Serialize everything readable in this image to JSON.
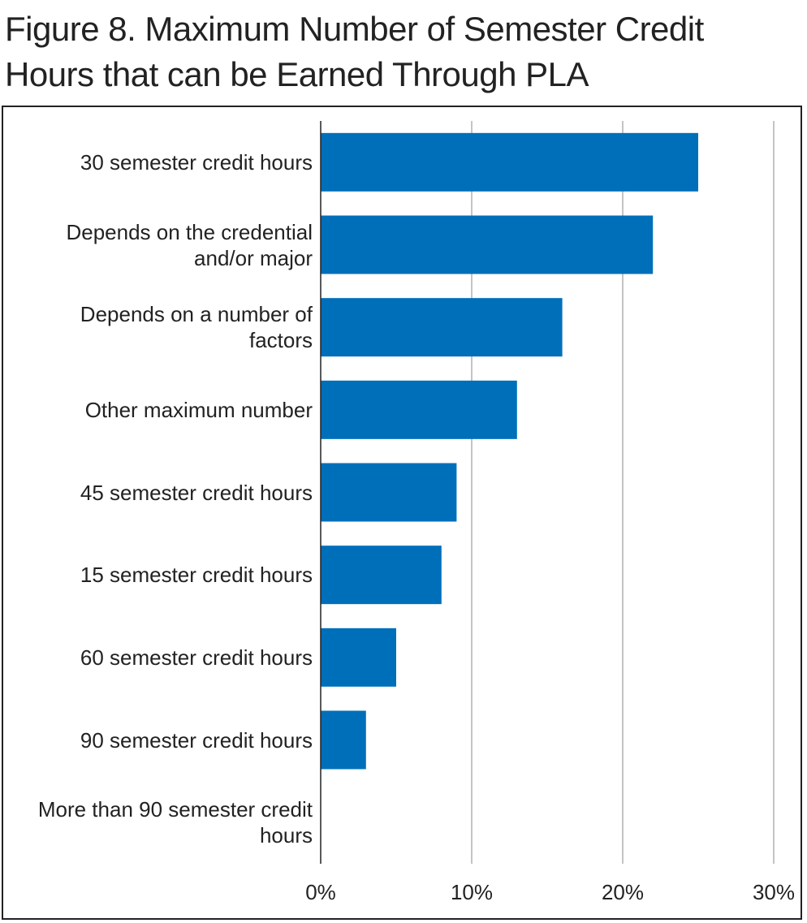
{
  "chart_data": {
    "type": "bar",
    "orientation": "horizontal",
    "title": "Figure 8. Maximum Number of Semester Credit Hours that can be Earned Through PLA",
    "categories": [
      "30 semester credit hours",
      "Depends on the credential and/or major",
      "Depends on a number of factors",
      "Other maximum number",
      "45 semester credit hours",
      "15 semester credit hours",
      "60 semester credit hours",
      "90 semester credit hours",
      "More than 90 semester credit hours"
    ],
    "values": [
      25,
      22,
      16,
      13,
      9,
      8,
      5,
      3,
      0
    ],
    "color": "#006fba",
    "xlim": [
      0,
      30
    ],
    "xticks": [
      {
        "value": 0,
        "label": "0%"
      },
      {
        "value": 10,
        "label": "10%"
      },
      {
        "value": 20,
        "label": "20%"
      },
      {
        "value": 30,
        "label": "30%"
      }
    ],
    "grid": true
  }
}
